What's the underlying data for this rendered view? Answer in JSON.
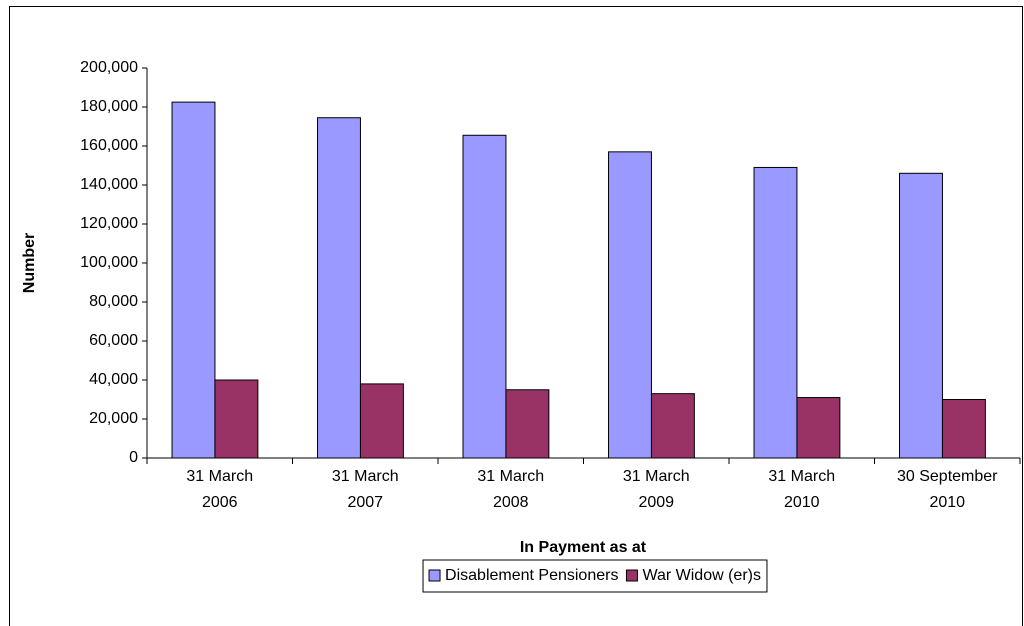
{
  "chart_data": {
    "type": "bar",
    "x_label": "In Payment as at",
    "y_label": "Number",
    "categories": [
      "31 March\n2006",
      "31 March\n2007",
      "31 March\n2008",
      "31 March\n2009",
      "31 March\n2010",
      "30 September\n2010"
    ],
    "series": [
      {
        "name": "Disablement Pensioners",
        "color": "#9999ff",
        "values": [
          182500,
          174500,
          165500,
          157000,
          149000,
          146000
        ]
      },
      {
        "name": "War Widow (er)s",
        "color": "#993366",
        "values": [
          40000,
          38000,
          35000,
          33000,
          31000,
          30000
        ]
      }
    ],
    "ylim": [
      0,
      200000
    ],
    "yticks": [
      0,
      {
        "value": 20000,
        "label": "20,000"
      },
      {
        "value": 40000,
        "label": "40,000"
      },
      {
        "value": 60000,
        "label": "60,000"
      },
      {
        "value": 80000,
        "label": "80,000"
      },
      {
        "value": 100000,
        "label": "100,000"
      },
      {
        "value": 120000,
        "label": "120,000"
      },
      {
        "value": 140000,
        "label": "140,000"
      },
      {
        "value": 160000,
        "label": "160,000"
      },
      {
        "value": 180000,
        "label": "180,000"
      },
      {
        "value": 200000,
        "label": "200,000"
      }
    ],
    "grid": false,
    "legend": "bottom"
  }
}
